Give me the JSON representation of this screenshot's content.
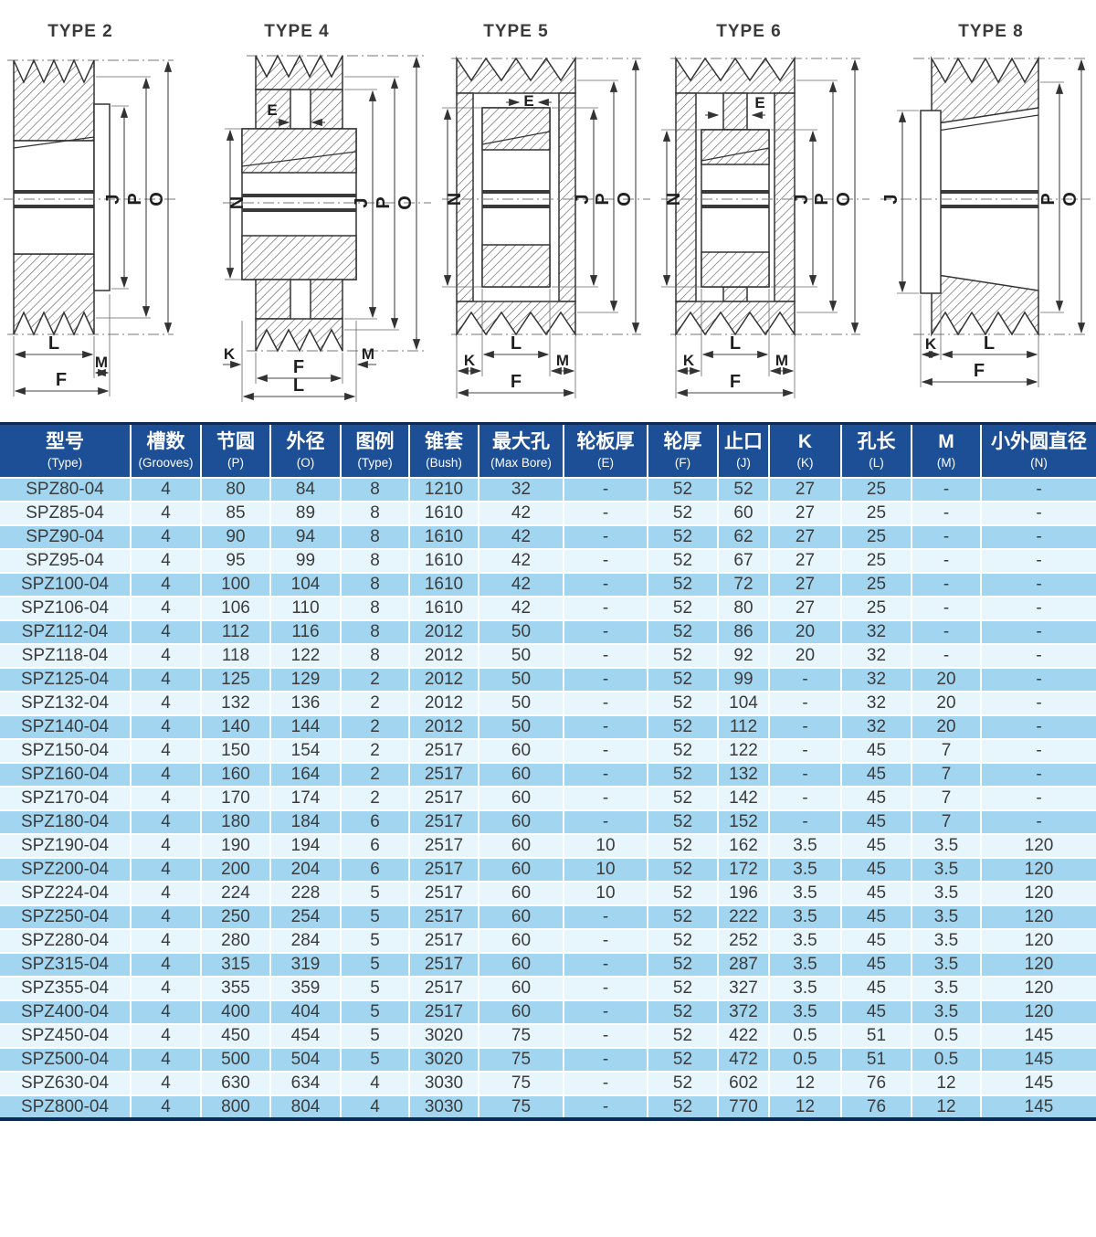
{
  "drawings": [
    {
      "title": "TYPE 2",
      "dims": {
        "j": "J",
        "p": "P",
        "o": "O",
        "l": "L",
        "m": "M",
        "f": "F"
      }
    },
    {
      "title": "TYPE 4",
      "dims": {
        "e": "E",
        "n": "N",
        "j": "J",
        "p": "P",
        "o": "O",
        "k": "K",
        "m": "M",
        "f": "F",
        "l": "L"
      }
    },
    {
      "title": "TYPE 5",
      "dims": {
        "e": "E",
        "n": "N",
        "j": "J",
        "p": "P",
        "o": "O",
        "l": "L",
        "k": "K",
        "m": "M",
        "f": "F"
      }
    },
    {
      "title": "TYPE 6",
      "dims": {
        "e": "E",
        "n": "N",
        "j": "J",
        "p": "P",
        "o": "O",
        "l": "L",
        "k": "K",
        "m": "M",
        "f": "F"
      }
    },
    {
      "title": "TYPE 8",
      "dims": {
        "j": "J",
        "p": "P",
        "o": "O",
        "k": "K",
        "l": "L",
        "f": "F"
      }
    }
  ],
  "table": {
    "columns": [
      {
        "cn": "型号",
        "en": "(Type)"
      },
      {
        "cn": "槽数",
        "en": "(Grooves)"
      },
      {
        "cn": "节圆",
        "en": "(P)"
      },
      {
        "cn": "外径",
        "en": "(O)"
      },
      {
        "cn": "图例",
        "en": "(Type)"
      },
      {
        "cn": "锥套",
        "en": "(Bush)"
      },
      {
        "cn": "最大孔",
        "en": "(Max Bore)"
      },
      {
        "cn": "轮板厚",
        "en": "(E)"
      },
      {
        "cn": "轮厚",
        "en": "(F)"
      },
      {
        "cn": "止口",
        "en": "(J)"
      },
      {
        "cn": "K",
        "en": "(K)"
      },
      {
        "cn": "孔长",
        "en": "(L)"
      },
      {
        "cn": "M",
        "en": "(M)"
      },
      {
        "cn": "小外圆直径",
        "en": "(N)"
      }
    ],
    "rows": [
      [
        "SPZ80-04",
        "4",
        "80",
        "84",
        "8",
        "1210",
        "32",
        "-",
        "52",
        "52",
        "27",
        "25",
        "-",
        "-"
      ],
      [
        "SPZ85-04",
        "4",
        "85",
        "89",
        "8",
        "1610",
        "42",
        "-",
        "52",
        "60",
        "27",
        "25",
        "-",
        "-"
      ],
      [
        "SPZ90-04",
        "4",
        "90",
        "94",
        "8",
        "1610",
        "42",
        "-",
        "52",
        "62",
        "27",
        "25",
        "-",
        "-"
      ],
      [
        "SPZ95-04",
        "4",
        "95",
        "99",
        "8",
        "1610",
        "42",
        "-",
        "52",
        "67",
        "27",
        "25",
        "-",
        "-"
      ],
      [
        "SPZ100-04",
        "4",
        "100",
        "104",
        "8",
        "1610",
        "42",
        "-",
        "52",
        "72",
        "27",
        "25",
        "-",
        "-"
      ],
      [
        "SPZ106-04",
        "4",
        "106",
        "110",
        "8",
        "1610",
        "42",
        "-",
        "52",
        "80",
        "27",
        "25",
        "-",
        "-"
      ],
      [
        "SPZ112-04",
        "4",
        "112",
        "116",
        "8",
        "2012",
        "50",
        "-",
        "52",
        "86",
        "20",
        "32",
        "-",
        "-"
      ],
      [
        "SPZ118-04",
        "4",
        "118",
        "122",
        "8",
        "2012",
        "50",
        "-",
        "52",
        "92",
        "20",
        "32",
        "-",
        "-"
      ],
      [
        "SPZ125-04",
        "4",
        "125",
        "129",
        "2",
        "2012",
        "50",
        "-",
        "52",
        "99",
        "-",
        "32",
        "20",
        "-"
      ],
      [
        "SPZ132-04",
        "4",
        "132",
        "136",
        "2",
        "2012",
        "50",
        "-",
        "52",
        "104",
        "-",
        "32",
        "20",
        "-"
      ],
      [
        "SPZ140-04",
        "4",
        "140",
        "144",
        "2",
        "2012",
        "50",
        "-",
        "52",
        "112",
        "-",
        "32",
        "20",
        "-"
      ],
      [
        "SPZ150-04",
        "4",
        "150",
        "154",
        "2",
        "2517",
        "60",
        "-",
        "52",
        "122",
        "-",
        "45",
        "7",
        "-"
      ],
      [
        "SPZ160-04",
        "4",
        "160",
        "164",
        "2",
        "2517",
        "60",
        "-",
        "52",
        "132",
        "-",
        "45",
        "7",
        "-"
      ],
      [
        "SPZ170-04",
        "4",
        "170",
        "174",
        "2",
        "2517",
        "60",
        "-",
        "52",
        "142",
        "-",
        "45",
        "7",
        "-"
      ],
      [
        "SPZ180-04",
        "4",
        "180",
        "184",
        "6",
        "2517",
        "60",
        "-",
        "52",
        "152",
        "-",
        "45",
        "7",
        "-"
      ],
      [
        "SPZ190-04",
        "4",
        "190",
        "194",
        "6",
        "2517",
        "60",
        "10",
        "52",
        "162",
        "3.5",
        "45",
        "3.5",
        "120"
      ],
      [
        "SPZ200-04",
        "4",
        "200",
        "204",
        "6",
        "2517",
        "60",
        "10",
        "52",
        "172",
        "3.5",
        "45",
        "3.5",
        "120"
      ],
      [
        "SPZ224-04",
        "4",
        "224",
        "228",
        "5",
        "2517",
        "60",
        "10",
        "52",
        "196",
        "3.5",
        "45",
        "3.5",
        "120"
      ],
      [
        "SPZ250-04",
        "4",
        "250",
        "254",
        "5",
        "2517",
        "60",
        "-",
        "52",
        "222",
        "3.5",
        "45",
        "3.5",
        "120"
      ],
      [
        "SPZ280-04",
        "4",
        "280",
        "284",
        "5",
        "2517",
        "60",
        "-",
        "52",
        "252",
        "3.5",
        "45",
        "3.5",
        "120"
      ],
      [
        "SPZ315-04",
        "4",
        "315",
        "319",
        "5",
        "2517",
        "60",
        "-",
        "52",
        "287",
        "3.5",
        "45",
        "3.5",
        "120"
      ],
      [
        "SPZ355-04",
        "4",
        "355",
        "359",
        "5",
        "2517",
        "60",
        "-",
        "52",
        "327",
        "3.5",
        "45",
        "3.5",
        "120"
      ],
      [
        "SPZ400-04",
        "4",
        "400",
        "404",
        "5",
        "2517",
        "60",
        "-",
        "52",
        "372",
        "3.5",
        "45",
        "3.5",
        "120"
      ],
      [
        "SPZ450-04",
        "4",
        "450",
        "454",
        "5",
        "3020",
        "75",
        "-",
        "52",
        "422",
        "0.5",
        "51",
        "0.5",
        "145"
      ],
      [
        "SPZ500-04",
        "4",
        "500",
        "504",
        "5",
        "3020",
        "75",
        "-",
        "52",
        "472",
        "0.5",
        "51",
        "0.5",
        "145"
      ],
      [
        "SPZ630-04",
        "4",
        "630",
        "634",
        "4",
        "3030",
        "75",
        "-",
        "52",
        "602",
        "12",
        "76",
        "12",
        "145"
      ],
      [
        "SPZ800-04",
        "4",
        "800",
        "804",
        "4",
        "3030",
        "75",
        "-",
        "52",
        "770",
        "12",
        "76",
        "12",
        "145"
      ]
    ],
    "colors": {
      "header_bg": "#1d4f97",
      "header_text": "#ffffff",
      "row_odd": "#a2d5f0",
      "row_even": "#e7f5fd",
      "grid": "#ffffff",
      "border_navy": "#0d2b57",
      "cell_text": "#3c3c3c"
    }
  }
}
